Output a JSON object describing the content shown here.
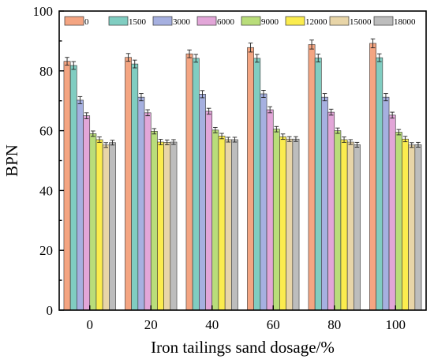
{
  "chart_data": {
    "type": "bar",
    "title": "",
    "xlabel": "Iron tailings sand dosage/%",
    "ylabel": "BPN",
    "categories": [
      "0",
      "20",
      "40",
      "60",
      "80",
      "100"
    ],
    "ylim": [
      0,
      100
    ],
    "yticks": [
      "0",
      "20",
      "40",
      "60",
      "80",
      "100"
    ],
    "grid": false,
    "legend_position": "top",
    "error_bars": true,
    "series": [
      {
        "name": "0",
        "color": "#f4a582",
        "values": [
          83.2,
          84.5,
          85.7,
          87.8,
          88.8,
          89.2
        ],
        "errors": [
          1.3,
          1.3,
          1.3,
          1.5,
          1.5,
          1.5
        ]
      },
      {
        "name": "1500",
        "color": "#80cdc1",
        "values": [
          81.8,
          82.3,
          84.2,
          84.2,
          84.3,
          84.4
        ],
        "errors": [
          1.3,
          1.3,
          1.3,
          1.3,
          1.3,
          1.3
        ]
      },
      {
        "name": "3000",
        "color": "#a6b0e0",
        "values": [
          70.2,
          71.2,
          72.2,
          72.3,
          71.2,
          71.2
        ],
        "errors": [
          1.2,
          1.2,
          1.2,
          1.2,
          1.2,
          1.2
        ]
      },
      {
        "name": "6000",
        "color": "#e2a6d8",
        "values": [
          65.0,
          66.0,
          66.5,
          67.0,
          66.2,
          65.2
        ],
        "errors": [
          1.0,
          1.0,
          1.0,
          1.0,
          1.0,
          1.0
        ]
      },
      {
        "name": "9000",
        "color": "#b9dd7a",
        "values": [
          59.0,
          59.8,
          60.2,
          60.5,
          60.0,
          59.5
        ],
        "errors": [
          0.9,
          0.9,
          0.9,
          0.9,
          0.9,
          0.9
        ]
      },
      {
        "name": "12000",
        "color": "#fbec4e",
        "values": [
          57.0,
          56.2,
          58.2,
          58.0,
          57.0,
          57.2
        ],
        "errors": [
          0.9,
          0.9,
          0.9,
          0.9,
          0.9,
          0.9
        ]
      },
      {
        "name": "15000",
        "color": "#e8d5a8",
        "values": [
          55.2,
          56.1,
          57.0,
          57.2,
          56.2,
          55.2
        ],
        "errors": [
          0.8,
          0.8,
          0.8,
          0.8,
          0.8,
          0.8
        ]
      },
      {
        "name": "18000",
        "color": "#bdbdbd",
        "values": [
          56.0,
          56.2,
          57.0,
          57.2,
          55.3,
          55.3
        ],
        "errors": [
          0.8,
          0.8,
          0.8,
          0.8,
          0.8,
          0.8
        ]
      }
    ]
  }
}
